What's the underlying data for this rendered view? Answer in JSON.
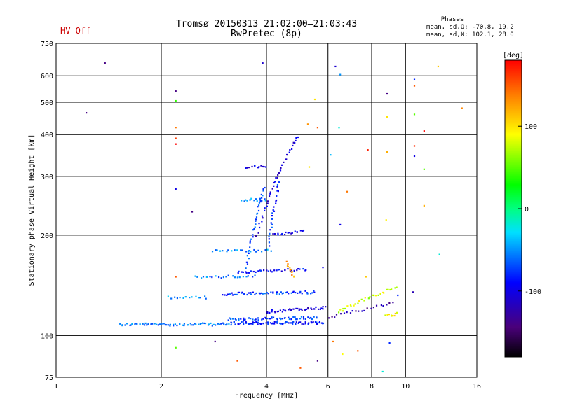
{
  "status": {
    "hv_text": "HV Off",
    "hv_color": "#cc0000"
  },
  "header": {
    "title_line1": "Tromsø 20150313 21:02:00–21:03:43",
    "title_line2": "RwPretec (8p)",
    "phases_title": "Phases",
    "phases_o": "mean, sd,O: -70.8, 19.2",
    "phases_x": "mean, sd,X: 102.1, 28.0"
  },
  "colorbar": {
    "unit_label": "[deg]",
    "ticks": [
      {
        "label": "100",
        "value": 100
      },
      {
        "label": "0",
        "value": 0
      },
      {
        "label": "-100",
        "value": -100
      }
    ],
    "range": [
      -180,
      180
    ]
  },
  "chart_data": {
    "type": "scatter",
    "xlabel": "Frequency [MHz]",
    "ylabel": "Stationary phase Virtual Height [km]",
    "xscale": "log",
    "yscale": "log",
    "xlim": [
      1,
      16
    ],
    "ylim": [
      75,
      750
    ],
    "xticks": [
      {
        "label": "1",
        "value": 1
      },
      {
        "label": "2",
        "value": 2
      },
      {
        "label": "4",
        "value": 4
      },
      {
        "label": "6",
        "value": 6
      },
      {
        "label": "8",
        "value": 8
      },
      {
        "label": "10",
        "value": 10
      },
      {
        "label": "16",
        "value": 16
      }
    ],
    "yticks": [
      {
        "label": "75",
        "value": 75
      },
      {
        "label": "100",
        "value": 100
      },
      {
        "label": "200",
        "value": 200
      },
      {
        "label": "300",
        "value": 300
      },
      {
        "label": "400",
        "value": 400
      },
      {
        "label": "500",
        "value": 500
      },
      {
        "label": "600",
        "value": 600
      },
      {
        "label": "750",
        "value": 750
      }
    ],
    "grid": true,
    "color_value": "phase [deg]",
    "traces": [
      {
        "f0": 1.52,
        "f1": 3.15,
        "h0": 108,
        "h1": 108,
        "p": -60,
        "n": 70
      },
      {
        "f0": 3.15,
        "f1": 5.85,
        "h0": 109,
        "h1": 109,
        "p": -85,
        "n": 70
      },
      {
        "f0": 3.1,
        "f1": 5.6,
        "h0": 112,
        "h1": 113,
        "p": -70,
        "n": 55
      },
      {
        "f0": 4.0,
        "f1": 5.9,
        "h0": 118,
        "h1": 121,
        "p": -110,
        "n": 40
      },
      {
        "f0": 2.1,
        "f1": 2.7,
        "h0": 130,
        "h1": 130,
        "p": -45,
        "n": 14
      },
      {
        "f0": 3.0,
        "f1": 5.5,
        "h0": 133,
        "h1": 135,
        "p": -75,
        "n": 55
      },
      {
        "f0": 2.5,
        "f1": 3.7,
        "h0": 150,
        "h1": 150,
        "p": -60,
        "n": 22
      },
      {
        "f0": 3.3,
        "f1": 5.2,
        "h0": 155,
        "h1": 158,
        "p": -90,
        "n": 35
      },
      {
        "f0": 2.8,
        "f1": 4.1,
        "h0": 180,
        "h1": 180,
        "p": -55,
        "n": 22
      },
      {
        "f0": 4.2,
        "f1": 5.1,
        "h0": 200,
        "h1": 205,
        "p": -100,
        "n": 18
      },
      {
        "f0": 3.4,
        "f1": 4.0,
        "h0": 255,
        "h1": 255,
        "p": -50,
        "n": 14
      },
      {
        "f0": 3.5,
        "f1": 4.0,
        "h0": 320,
        "h1": 320,
        "p": -100,
        "n": 12
      },
      {
        "f0": 3.75,
        "f1": 4.9,
        "h0": 200,
        "h1": 395,
        "p": -105,
        "n": 40
      },
      {
        "f0": 3.5,
        "f1": 3.95,
        "h0": 160,
        "h1": 280,
        "p": -70,
        "n": 35
      },
      {
        "f0": 4.05,
        "f1": 4.35,
        "h0": 185,
        "h1": 290,
        "p": -80,
        "n": 26
      },
      {
        "f0": 4.55,
        "f1": 4.8,
        "h0": 165,
        "h1": 150,
        "p": 125,
        "n": 12
      },
      {
        "f0": 6.4,
        "f1": 9.4,
        "h0": 118,
        "h1": 140,
        "p": 80,
        "n": 30
      },
      {
        "f0": 6.0,
        "f1": 9.2,
        "h0": 113,
        "h1": 125,
        "p": -125,
        "n": 22
      },
      {
        "f0": 8.8,
        "f1": 9.4,
        "h0": 115,
        "h1": 116,
        "p": 95,
        "n": 10
      }
    ],
    "points": [
      {
        "f": 1.22,
        "h": 465,
        "p": -140
      },
      {
        "f": 1.38,
        "h": 655,
        "p": -140
      },
      {
        "f": 2.2,
        "h": 540,
        "p": -140
      },
      {
        "f": 2.2,
        "h": 505,
        "p": 40
      },
      {
        "f": 2.2,
        "h": 420,
        "p": 140
      },
      {
        "f": 2.2,
        "h": 390,
        "p": 160
      },
      {
        "f": 2.2,
        "h": 375,
        "p": 180
      },
      {
        "f": 2.2,
        "h": 275,
        "p": -100
      },
      {
        "f": 2.2,
        "h": 150,
        "p": 150
      },
      {
        "f": 2.2,
        "h": 92,
        "p": 50
      },
      {
        "f": 2.45,
        "h": 235,
        "p": -140
      },
      {
        "f": 2.85,
        "h": 96,
        "p": -140
      },
      {
        "f": 3.3,
        "h": 84,
        "p": 150
      },
      {
        "f": 3.9,
        "h": 655,
        "p": -110
      },
      {
        "f": 6.3,
        "h": 640,
        "p": -110
      },
      {
        "f": 6.5,
        "h": 605,
        "p": -50
      },
      {
        "f": 8.85,
        "h": 530,
        "p": -140
      },
      {
        "f": 8.85,
        "h": 452,
        "p": 100
      },
      {
        "f": 10.6,
        "h": 585,
        "p": -80
      },
      {
        "f": 10.6,
        "h": 560,
        "p": 150
      },
      {
        "f": 10.6,
        "h": 460,
        "p": 50
      },
      {
        "f": 10.6,
        "h": 345,
        "p": -100
      },
      {
        "f": 10.6,
        "h": 370,
        "p": 165
      },
      {
        "f": 12.4,
        "h": 640,
        "p": 110
      },
      {
        "f": 14.5,
        "h": 480,
        "p": 135
      },
      {
        "f": 11.3,
        "h": 410,
        "p": 180
      },
      {
        "f": 11.3,
        "h": 315,
        "p": 50
      },
      {
        "f": 11.3,
        "h": 245,
        "p": 120
      },
      {
        "f": 12.5,
        "h": 175,
        "p": -20
      },
      {
        "f": 8.8,
        "h": 222,
        "p": 95
      },
      {
        "f": 6.1,
        "h": 348,
        "p": -40
      },
      {
        "f": 6.5,
        "h": 215,
        "p": -100
      },
      {
        "f": 6.8,
        "h": 270,
        "p": 140
      },
      {
        "f": 7.8,
        "h": 360,
        "p": 170
      },
      {
        "f": 8.85,
        "h": 355,
        "p": 120
      },
      {
        "f": 5.5,
        "h": 510,
        "p": 100
      },
      {
        "f": 5.25,
        "h": 430,
        "p": 130
      },
      {
        "f": 5.6,
        "h": 420,
        "p": 150
      },
      {
        "f": 6.45,
        "h": 420,
        "p": -20
      },
      {
        "f": 5.3,
        "h": 320,
        "p": 100
      },
      {
        "f": 5.0,
        "h": 80,
        "p": 150
      },
      {
        "f": 5.6,
        "h": 84,
        "p": -140
      },
      {
        "f": 6.6,
        "h": 88,
        "p": 90
      },
      {
        "f": 7.3,
        "h": 90,
        "p": 150
      },
      {
        "f": 8.6,
        "h": 78,
        "p": -20
      },
      {
        "f": 9.0,
        "h": 95,
        "p": -80
      },
      {
        "f": 6.2,
        "h": 96,
        "p": 140
      },
      {
        "f": 5.8,
        "h": 160,
        "p": -100
      },
      {
        "f": 7.7,
        "h": 150,
        "p": 110
      },
      {
        "f": 9.5,
        "h": 132,
        "p": -80
      },
      {
        "f": 10.5,
        "h": 135,
        "p": -120
      }
    ]
  }
}
